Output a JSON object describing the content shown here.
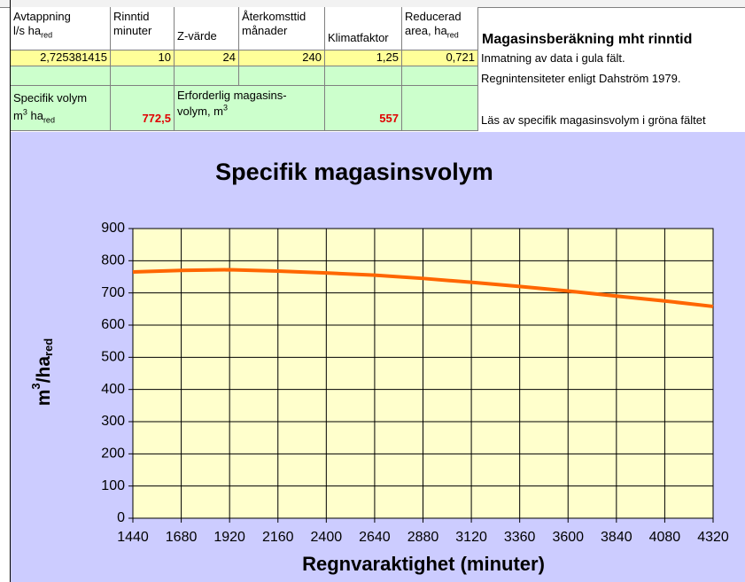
{
  "table": {
    "headers": [
      {
        "line1": "Avtappning",
        "line2": "l/s ha",
        "line2_sub": "red"
      },
      {
        "line1": "Rinntid",
        "line2": "minuter"
      },
      {
        "line2": "Z-värde"
      },
      {
        "line1": "Återkomsttid",
        "line2": "månader"
      },
      {
        "line2": "Klimatfaktor"
      },
      {
        "line1": "Reducerad",
        "line2": "area, ha",
        "line2_sub": "red"
      }
    ],
    "inputs": [
      "2,725381415",
      "10",
      "24",
      "240",
      "1,25",
      "0,721"
    ],
    "result_labels": [
      {
        "line1": "Specifik volym",
        "line2": "m",
        "line2_sup": "3",
        "line2_rest": " ha",
        "line2_sub": "red"
      },
      {
        "line1": "Erforderlig magasins-",
        "line2": "volym, m",
        "line2_sup": "3"
      }
    ],
    "results": [
      "772,5",
      "557"
    ]
  },
  "notes": {
    "title": "Magasinsberäkning mht rinntid",
    "lines": [
      "Inmatning av data i gula fält.",
      "Regnintensiteter enligt Dahström 1979.",
      "Läs av specifik magasinsvolym i gröna fältet"
    ]
  },
  "chart_data": {
    "type": "line",
    "title": "Specifik magasinsvolym",
    "x_label": "Regnvaraktighet (minuter)",
    "y_label": {
      "base": "m",
      "sup": "3",
      "mid": "/ha",
      "sub": "red"
    },
    "x": [
      1440,
      1680,
      1920,
      2160,
      2400,
      2640,
      2880,
      3120,
      3360,
      3600,
      3840,
      4080,
      4320
    ],
    "values": [
      765,
      770,
      772,
      768,
      762,
      755,
      745,
      733,
      720,
      706,
      690,
      675,
      658
    ],
    "color": "#ff6600",
    "xlim": [
      1440,
      4320
    ],
    "ylim": [
      0,
      900
    ],
    "xticks": [
      1440,
      1680,
      1920,
      2160,
      2400,
      2640,
      2880,
      3120,
      3360,
      3600,
      3840,
      4080,
      4320
    ],
    "yticks": [
      0,
      100,
      200,
      300,
      400,
      500,
      600,
      700,
      800,
      900
    ],
    "grid": true
  }
}
